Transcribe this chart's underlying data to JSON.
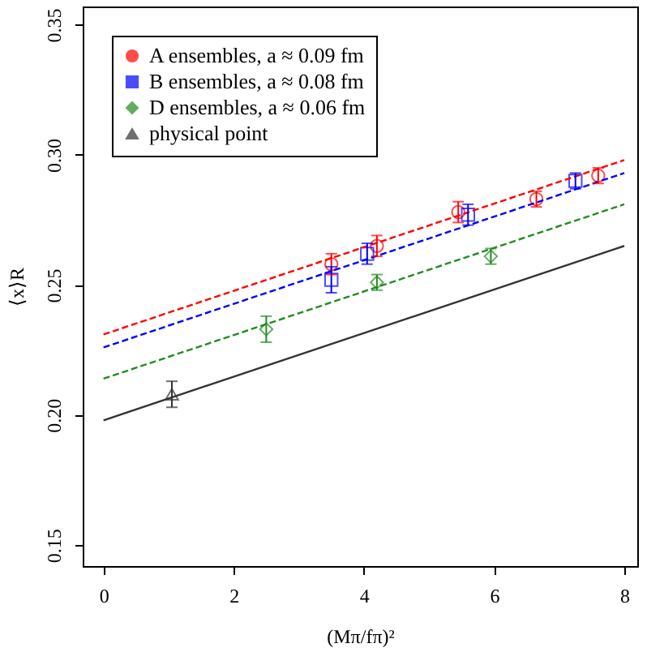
{
  "chart_data": {
    "type": "scatter",
    "xlabel": "(Mπ/fπ)²",
    "ylabel": "⟨x⟩R",
    "xlim": [
      -0.32,
      8.2
    ],
    "ylim": [
      0.142,
      0.357
    ],
    "xticks": [
      0,
      2,
      4,
      6,
      8
    ],
    "yticks": [
      0.15,
      {
        "value": 0.2,
        "label": "0.20"
      },
      0.25,
      {
        "value": 0.3,
        "label": "0.30"
      },
      0.35
    ],
    "grid": false,
    "legend": "top left",
    "series": [
      {
        "name": "A ensembles, a ≈ 0.09 fm",
        "marker": "circle",
        "color": "#ff0000",
        "x": [
          3.5,
          4.2,
          5.45,
          6.65,
          7.6
        ],
        "values": [
          0.258,
          0.265,
          0.278,
          0.283,
          0.292
        ],
        "errors": [
          0.004,
          0.004,
          0.004,
          0.003,
          0.003
        ]
      },
      {
        "name": "B ensembles, a ≈ 0.08 fm",
        "marker": "square",
        "color": "#0000ff",
        "x": [
          3.5,
          4.05,
          5.6,
          7.25
        ],
        "values": [
          0.252,
          0.262,
          0.277,
          0.29
        ],
        "errors": [
          0.005,
          0.004,
          0.004,
          0.003
        ]
      },
      {
        "name": "D ensembles, a ≈ 0.06 fm",
        "marker": "diamond",
        "color": "#228b22",
        "x": [
          2.5,
          4.2,
          5.95
        ],
        "values": [
          0.233,
          0.251,
          0.261
        ],
        "errors": [
          0.005,
          0.003,
          0.003
        ]
      },
      {
        "name": "physical point",
        "marker": "triangle",
        "color": "#333333",
        "x": [
          1.05
        ],
        "values": [
          0.208
        ],
        "errors": [
          0.005
        ]
      },
      {
        "type": "line",
        "line_style": "dashed",
        "color": "#ff0000",
        "x": [
          0,
          8
        ],
        "values": [
          0.231,
          0.298
        ]
      },
      {
        "type": "line",
        "line_style": "dashed",
        "color": "#0000ff",
        "x": [
          0,
          8
        ],
        "values": [
          0.226,
          0.293
        ]
      },
      {
        "type": "line",
        "line_style": "dashed",
        "color": "#228b22",
        "x": [
          0,
          8
        ],
        "values": [
          0.214,
          0.281
        ]
      },
      {
        "type": "line",
        "line_style": "solid",
        "color": "#333333",
        "x": [
          0,
          8
        ],
        "values": [
          0.198,
          0.265
        ]
      }
    ]
  }
}
